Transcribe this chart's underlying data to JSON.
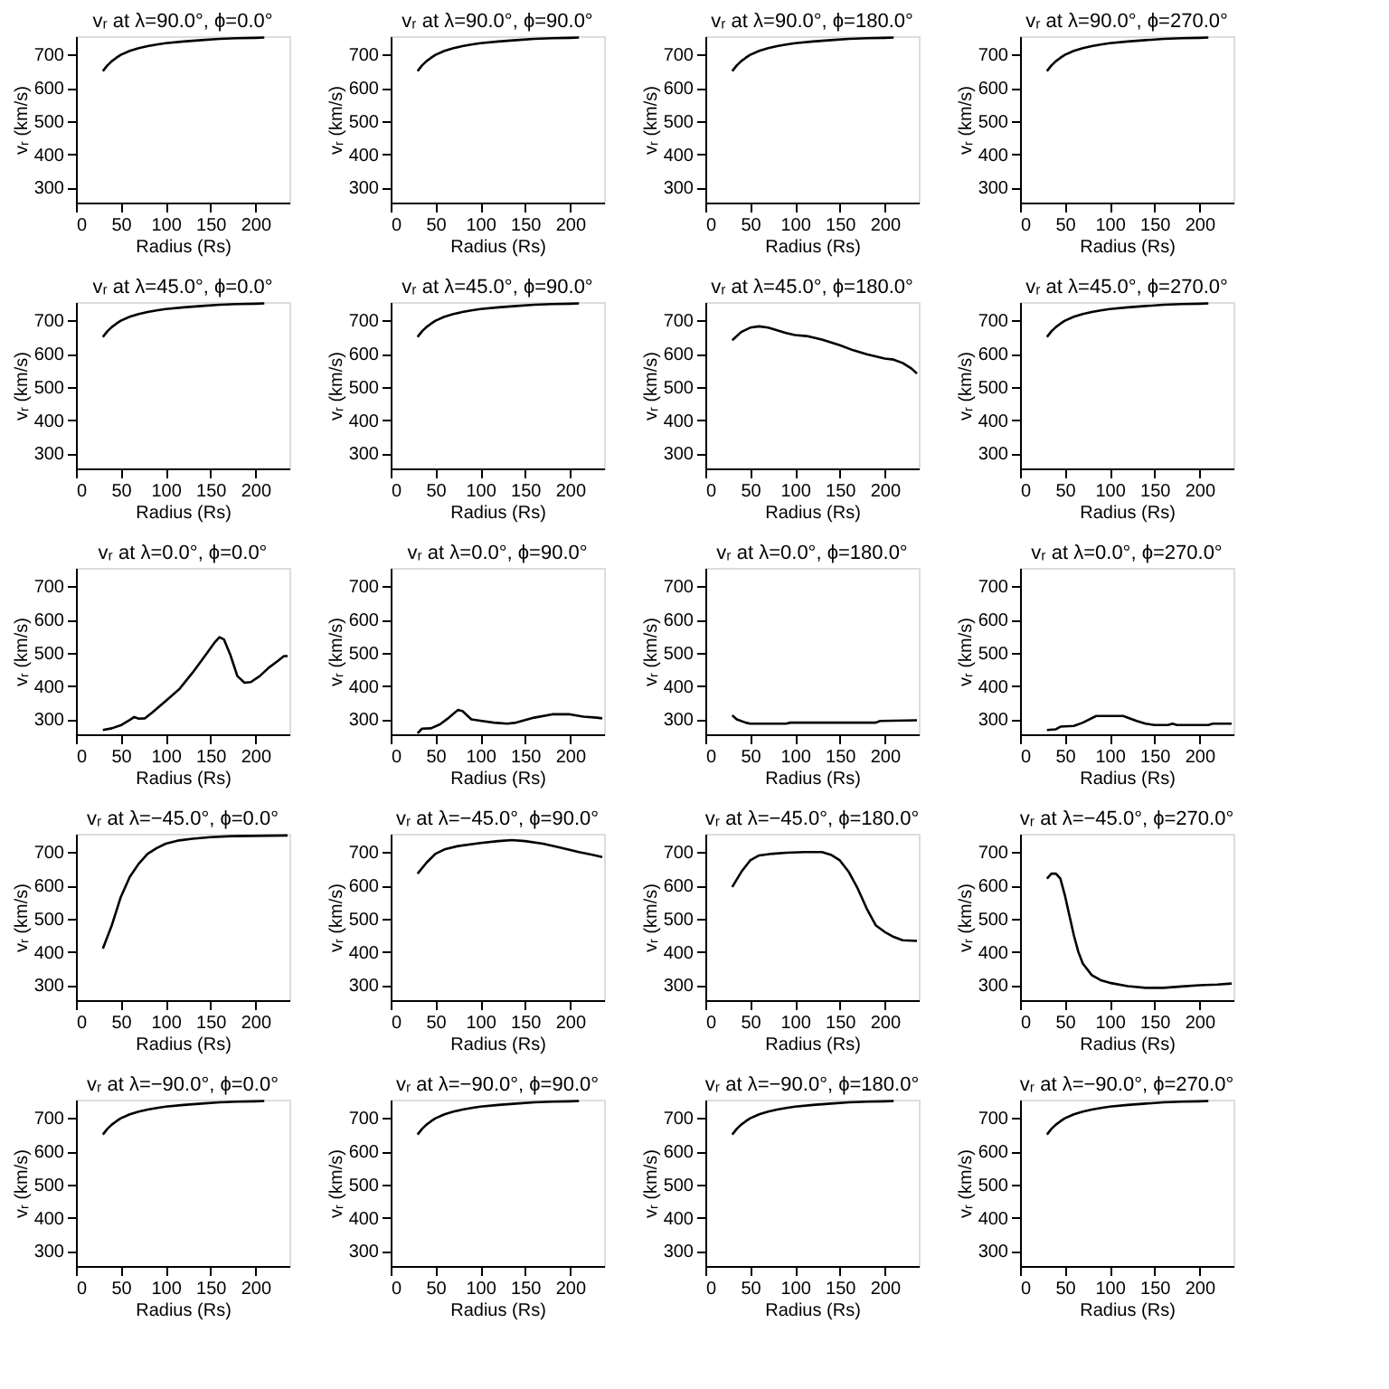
{
  "chart_data": [
    {
      "type": "line",
      "title": "vᵣ at λ=90.0°, ϕ=0.0°",
      "xlabel": "Radius (Rs)",
      "ylabel": "vᵣ (km/s)",
      "xlim": [
        0,
        238
      ],
      "ylim": [
        255,
        755
      ],
      "xticks": [
        0,
        50,
        100,
        150,
        200
      ],
      "yticks": [
        300,
        400,
        500,
        600,
        700
      ],
      "series": [
        {
          "color": "#000000",
          "x": [
            30,
            35,
            40,
            45,
            50,
            60,
            70,
            80,
            90,
            100,
            120,
            140,
            160,
            180,
            200,
            210
          ],
          "values": [
            650,
            667,
            680,
            690,
            699,
            711,
            719,
            725,
            730,
            734,
            739,
            743,
            747,
            749,
            750,
            751
          ]
        }
      ]
    },
    {
      "type": "line",
      "title": "vᵣ at λ=90.0°, ϕ=90.0°",
      "xlabel": "Radius (Rs)",
      "ylabel": "vᵣ (km/s)",
      "xlim": [
        0,
        238
      ],
      "ylim": [
        255,
        755
      ],
      "xticks": [
        0,
        50,
        100,
        150,
        200
      ],
      "yticks": [
        300,
        400,
        500,
        600,
        700
      ],
      "series": [
        {
          "color": "#000000",
          "x": [
            30,
            35,
            40,
            45,
            50,
            60,
            70,
            80,
            90,
            100,
            120,
            140,
            160,
            180,
            200,
            210
          ],
          "values": [
            650,
            667,
            680,
            690,
            699,
            711,
            719,
            725,
            730,
            734,
            739,
            743,
            747,
            749,
            750,
            751
          ]
        }
      ]
    },
    {
      "type": "line",
      "title": "vᵣ at λ=90.0°, ϕ=180.0°",
      "xlabel": "Radius (Rs)",
      "ylabel": "vᵣ (km/s)",
      "xlim": [
        0,
        238
      ],
      "ylim": [
        255,
        755
      ],
      "xticks": [
        0,
        50,
        100,
        150,
        200
      ],
      "yticks": [
        300,
        400,
        500,
        600,
        700
      ],
      "series": [
        {
          "color": "#000000",
          "x": [
            30,
            35,
            40,
            45,
            50,
            60,
            70,
            80,
            90,
            100,
            120,
            140,
            160,
            180,
            200,
            210
          ],
          "values": [
            650,
            667,
            680,
            690,
            699,
            711,
            719,
            725,
            730,
            734,
            739,
            743,
            747,
            749,
            750,
            751
          ]
        }
      ]
    },
    {
      "type": "line",
      "title": "vᵣ at λ=90.0°, ϕ=270.0°",
      "xlabel": "Radius (Rs)",
      "ylabel": "vᵣ (km/s)",
      "xlim": [
        0,
        238
      ],
      "ylim": [
        255,
        755
      ],
      "xticks": [
        0,
        50,
        100,
        150,
        200
      ],
      "yticks": [
        300,
        400,
        500,
        600,
        700
      ],
      "series": [
        {
          "color": "#000000",
          "x": [
            30,
            35,
            40,
            45,
            50,
            60,
            70,
            80,
            90,
            100,
            120,
            140,
            160,
            180,
            200,
            210
          ],
          "values": [
            650,
            667,
            680,
            690,
            699,
            711,
            719,
            725,
            730,
            734,
            739,
            743,
            747,
            749,
            750,
            751
          ]
        }
      ]
    },
    {
      "type": "line",
      "title": "vᵣ at λ=45.0°, ϕ=0.0°",
      "xlabel": "Radius (Rs)",
      "ylabel": "vᵣ (km/s)",
      "xlim": [
        0,
        238
      ],
      "ylim": [
        255,
        755
      ],
      "xticks": [
        0,
        50,
        100,
        150,
        200
      ],
      "yticks": [
        300,
        400,
        500,
        600,
        700
      ],
      "series": [
        {
          "color": "#000000",
          "x": [
            30,
            35,
            40,
            45,
            50,
            60,
            70,
            80,
            90,
            100,
            120,
            140,
            160,
            180,
            200,
            210
          ],
          "values": [
            650,
            667,
            680,
            690,
            699,
            711,
            719,
            725,
            730,
            734,
            739,
            743,
            747,
            749,
            750,
            751
          ]
        }
      ]
    },
    {
      "type": "line",
      "title": "vᵣ at λ=45.0°, ϕ=90.0°",
      "xlabel": "Radius (Rs)",
      "ylabel": "vᵣ (km/s)",
      "xlim": [
        0,
        238
      ],
      "ylim": [
        255,
        755
      ],
      "xticks": [
        0,
        50,
        100,
        150,
        200
      ],
      "yticks": [
        300,
        400,
        500,
        600,
        700
      ],
      "series": [
        {
          "color": "#000000",
          "x": [
            30,
            35,
            40,
            45,
            50,
            60,
            70,
            80,
            90,
            100,
            120,
            140,
            160,
            180,
            200,
            210
          ],
          "values": [
            650,
            667,
            680,
            690,
            699,
            711,
            719,
            725,
            730,
            734,
            739,
            743,
            747,
            749,
            750,
            751
          ]
        }
      ]
    },
    {
      "type": "line",
      "title": "vᵣ at λ=45.0°, ϕ=180.0°",
      "xlabel": "Radius (Rs)",
      "ylabel": "vᵣ (km/s)",
      "xlim": [
        0,
        238
      ],
      "ylim": [
        255,
        755
      ],
      "xticks": [
        0,
        50,
        100,
        150,
        200
      ],
      "yticks": [
        300,
        400,
        500,
        600,
        700
      ],
      "series": [
        {
          "color": "#000000",
          "x": [
            30,
            40,
            50,
            60,
            70,
            80,
            90,
            100,
            115,
            130,
            150,
            165,
            180,
            200,
            210,
            220,
            230,
            236
          ],
          "values": [
            640,
            665,
            678,
            682,
            678,
            670,
            662,
            656,
            652,
            642,
            625,
            610,
            598,
            585,
            582,
            572,
            555,
            540
          ]
        }
      ]
    },
    {
      "type": "line",
      "title": "vᵣ at λ=45.0°, ϕ=270.0°",
      "xlabel": "Radius (Rs)",
      "ylabel": "vᵣ (km/s)",
      "xlim": [
        0,
        238
      ],
      "ylim": [
        255,
        755
      ],
      "xticks": [
        0,
        50,
        100,
        150,
        200
      ],
      "yticks": [
        300,
        400,
        500,
        600,
        700
      ],
      "series": [
        {
          "color": "#000000",
          "x": [
            30,
            35,
            40,
            45,
            50,
            60,
            70,
            80,
            90,
            100,
            120,
            140,
            160,
            180,
            200,
            210
          ],
          "values": [
            650,
            667,
            680,
            690,
            699,
            711,
            719,
            725,
            730,
            734,
            739,
            743,
            747,
            749,
            750,
            751
          ]
        }
      ]
    },
    {
      "type": "line",
      "title": "vᵣ at λ=0.0°, ϕ=0.0°",
      "xlabel": "Radius (Rs)",
      "ylabel": "vᵣ (km/s)",
      "xlim": [
        0,
        238
      ],
      "ylim": [
        255,
        755
      ],
      "xticks": [
        0,
        50,
        100,
        150,
        200
      ],
      "yticks": [
        300,
        400,
        500,
        600,
        700
      ],
      "series": [
        {
          "color": "#000000",
          "x": [
            30,
            40,
            50,
            60,
            65,
            70,
            77,
            85,
            100,
            115,
            130,
            145,
            155,
            160,
            165,
            172,
            180,
            188,
            195,
            205,
            215,
            225,
            232,
            236
          ],
          "values": [
            268,
            273,
            282,
            298,
            307,
            302,
            303,
            320,
            355,
            390,
            440,
            495,
            532,
            547,
            540,
            495,
            430,
            410,
            412,
            430,
            455,
            475,
            490,
            490
          ]
        }
      ]
    },
    {
      "type": "line",
      "title": "vᵣ at λ=0.0°, ϕ=90.0°",
      "xlabel": "Radius (Rs)",
      "ylabel": "vᵣ (km/s)",
      "xlim": [
        0,
        238
      ],
      "ylim": [
        255,
        755
      ],
      "xticks": [
        0,
        50,
        100,
        150,
        200
      ],
      "yticks": [
        300,
        400,
        500,
        600,
        700
      ],
      "series": [
        {
          "color": "#000000",
          "x": [
            30,
            35,
            45,
            55,
            65,
            75,
            80,
            90,
            100,
            115,
            130,
            140,
            160,
            180,
            200,
            215,
            230,
            236
          ],
          "values": [
            258,
            272,
            273,
            285,
            305,
            328,
            325,
            300,
            296,
            290,
            287,
            290,
            305,
            315,
            315,
            308,
            305,
            303
          ]
        }
      ]
    },
    {
      "type": "line",
      "title": "vᵣ at λ=0.0°, ϕ=180.0°",
      "xlabel": "Radius (Rs)",
      "ylabel": "vᵣ (km/s)",
      "xlim": [
        0,
        238
      ],
      "ylim": [
        255,
        755
      ],
      "xticks": [
        0,
        50,
        100,
        150,
        200
      ],
      "yticks": [
        300,
        400,
        500,
        600,
        700
      ],
      "series": [
        {
          "color": "#000000",
          "x": [
            30,
            35,
            45,
            50,
            90,
            95,
            190,
            195,
            236
          ],
          "values": [
            312,
            300,
            290,
            287,
            287,
            290,
            290,
            295,
            297
          ]
        }
      ]
    },
    {
      "type": "line",
      "title": "vᵣ at λ=0.0°, ϕ=270.0°",
      "xlabel": "Radius (Rs)",
      "ylabel": "vᵣ (km/s)",
      "xlim": [
        0,
        238
      ],
      "ylim": [
        255,
        755
      ],
      "xticks": [
        0,
        50,
        100,
        150,
        200
      ],
      "yticks": [
        300,
        400,
        500,
        600,
        700
      ],
      "series": [
        {
          "color": "#000000",
          "x": [
            30,
            40,
            45,
            60,
            70,
            85,
            115,
            130,
            140,
            150,
            165,
            170,
            175,
            210,
            215,
            236
          ],
          "values": [
            268,
            270,
            278,
            280,
            290,
            310,
            310,
            295,
            287,
            283,
            283,
            287,
            283,
            283,
            287,
            287
          ]
        }
      ]
    },
    {
      "type": "line",
      "title": "vᵣ at λ=−45.0°, ϕ=0.0°",
      "xlabel": "Radius (Rs)",
      "ylabel": "vᵣ (km/s)",
      "xlim": [
        0,
        238
      ],
      "ylim": [
        255,
        755
      ],
      "xticks": [
        0,
        50,
        100,
        150,
        200
      ],
      "yticks": [
        300,
        400,
        500,
        600,
        700
      ],
      "series": [
        {
          "color": "#000000",
          "x": [
            30,
            40,
            50,
            60,
            70,
            80,
            90,
            100,
            115,
            130,
            150,
            175,
            236
          ],
          "values": [
            410,
            480,
            565,
            625,
            665,
            695,
            712,
            725,
            735,
            740,
            745,
            748,
            750
          ]
        }
      ]
    },
    {
      "type": "line",
      "title": "vᵣ at λ=−45.0°, ϕ=90.0°",
      "xlabel": "Radius (Rs)",
      "ylabel": "vᵣ (km/s)",
      "xlim": [
        0,
        238
      ],
      "ylim": [
        255,
        755
      ],
      "xticks": [
        0,
        50,
        100,
        150,
        200
      ],
      "yticks": [
        300,
        400,
        500,
        600,
        700
      ],
      "series": [
        {
          "color": "#000000",
          "x": [
            30,
            40,
            50,
            60,
            75,
            100,
            120,
            135,
            150,
            170,
            190,
            210,
            225,
            236
          ],
          "values": [
            635,
            668,
            695,
            708,
            718,
            727,
            733,
            736,
            733,
            725,
            713,
            700,
            692,
            685
          ]
        }
      ]
    },
    {
      "type": "line",
      "title": "vᵣ at λ=−45.0°, ϕ=180.0°",
      "xlabel": "Radius (Rs)",
      "ylabel": "vᵣ (km/s)",
      "xlim": [
        0,
        238
      ],
      "ylim": [
        255,
        755
      ],
      "xticks": [
        0,
        50,
        100,
        150,
        200
      ],
      "yticks": [
        300,
        400,
        500,
        600,
        700
      ],
      "series": [
        {
          "color": "#000000",
          "x": [
            30,
            40,
            50,
            60,
            75,
            90,
            110,
            130,
            140,
            150,
            160,
            170,
            180,
            190,
            200,
            210,
            220,
            236
          ],
          "values": [
            595,
            640,
            675,
            690,
            695,
            698,
            700,
            700,
            692,
            675,
            640,
            590,
            530,
            480,
            460,
            445,
            435,
            433
          ]
        }
      ]
    },
    {
      "type": "line",
      "title": "vᵣ at λ=−45.0°, ϕ=270.0°",
      "xlabel": "Radius (Rs)",
      "ylabel": "vᵣ (km/s)",
      "xlim": [
        0,
        238
      ],
      "ylim": [
        255,
        755
      ],
      "xticks": [
        0,
        50,
        100,
        150,
        200
      ],
      "yticks": [
        300,
        400,
        500,
        600,
        700
      ],
      "series": [
        {
          "color": "#000000",
          "x": [
            30,
            35,
            40,
            45,
            50,
            55,
            60,
            65,
            70,
            80,
            90,
            100,
            120,
            140,
            160,
            180,
            200,
            220,
            236
          ],
          "values": [
            620,
            635,
            635,
            620,
            570,
            510,
            450,
            400,
            365,
            330,
            315,
            307,
            297,
            292,
            292,
            296,
            300,
            302,
            305
          ]
        }
      ]
    },
    {
      "type": "line",
      "title": "vᵣ at λ=−90.0°, ϕ=0.0°",
      "xlabel": "Radius (Rs)",
      "ylabel": "vᵣ (km/s)",
      "xlim": [
        0,
        238
      ],
      "ylim": [
        255,
        755
      ],
      "xticks": [
        0,
        50,
        100,
        150,
        200
      ],
      "yticks": [
        300,
        400,
        500,
        600,
        700
      ],
      "series": [
        {
          "color": "#000000",
          "x": [
            30,
            35,
            40,
            45,
            50,
            60,
            70,
            80,
            90,
            100,
            120,
            140,
            160,
            180,
            200,
            210
          ],
          "values": [
            650,
            667,
            680,
            690,
            699,
            711,
            719,
            725,
            730,
            734,
            739,
            743,
            747,
            749,
            750,
            751
          ]
        }
      ]
    },
    {
      "type": "line",
      "title": "vᵣ at λ=−90.0°, ϕ=90.0°",
      "xlabel": "Radius (Rs)",
      "ylabel": "vᵣ (km/s)",
      "xlim": [
        0,
        238
      ],
      "ylim": [
        255,
        755
      ],
      "xticks": [
        0,
        50,
        100,
        150,
        200
      ],
      "yticks": [
        300,
        400,
        500,
        600,
        700
      ],
      "series": [
        {
          "color": "#000000",
          "x": [
            30,
            35,
            40,
            45,
            50,
            60,
            70,
            80,
            90,
            100,
            120,
            140,
            160,
            180,
            200,
            210
          ],
          "values": [
            650,
            667,
            680,
            690,
            699,
            711,
            719,
            725,
            730,
            734,
            739,
            743,
            747,
            749,
            750,
            751
          ]
        }
      ]
    },
    {
      "type": "line",
      "title": "vᵣ at λ=−90.0°, ϕ=180.0°",
      "xlabel": "Radius (Rs)",
      "ylabel": "vᵣ (km/s)",
      "xlim": [
        0,
        238
      ],
      "ylim": [
        255,
        755
      ],
      "xticks": [
        0,
        50,
        100,
        150,
        200
      ],
      "yticks": [
        300,
        400,
        500,
        600,
        700
      ],
      "series": [
        {
          "color": "#000000",
          "x": [
            30,
            35,
            40,
            45,
            50,
            60,
            70,
            80,
            90,
            100,
            120,
            140,
            160,
            180,
            200,
            210
          ],
          "values": [
            650,
            667,
            680,
            690,
            699,
            711,
            719,
            725,
            730,
            734,
            739,
            743,
            747,
            749,
            750,
            751
          ]
        }
      ]
    },
    {
      "type": "line",
      "title": "vᵣ at λ=−90.0°, ϕ=270.0°",
      "xlabel": "Radius (Rs)",
      "ylabel": "vᵣ (km/s)",
      "xlim": [
        0,
        238
      ],
      "ylim": [
        255,
        755
      ],
      "xticks": [
        0,
        50,
        100,
        150,
        200
      ],
      "yticks": [
        300,
        400,
        500,
        600,
        700
      ],
      "series": [
        {
          "color": "#000000",
          "x": [
            30,
            35,
            40,
            45,
            50,
            60,
            70,
            80,
            90,
            100,
            120,
            140,
            160,
            180,
            200,
            210
          ],
          "values": [
            650,
            667,
            680,
            690,
            699,
            711,
            719,
            725,
            730,
            734,
            739,
            743,
            747,
            749,
            750,
            751
          ]
        }
      ]
    }
  ]
}
